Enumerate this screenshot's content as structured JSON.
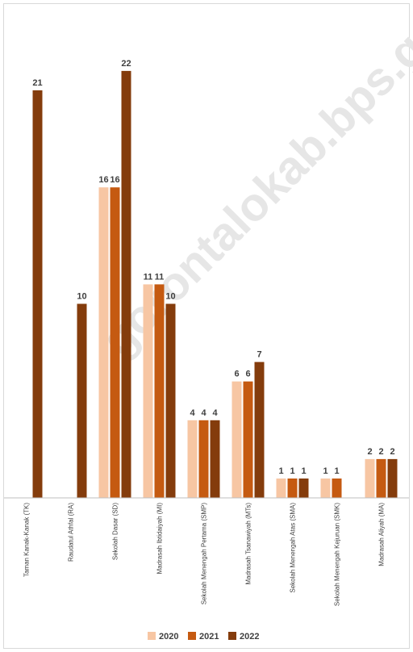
{
  "chart_data": {
    "type": "bar",
    "title": "",
    "xlabel": "",
    "ylabel": "",
    "ylim": [
      0,
      23
    ],
    "grid": false,
    "legend_position": "bottom",
    "categories": [
      "Taman Kanak-Kanak (TK)",
      "Raudatul Athfal (RA)",
      "Sekolah Dasar (SD)",
      "Madrasah Ibtidaiyah (MI)",
      "Sekolah Menengah Pertama (SMP)",
      "Madrasah Tsanawiyah (MTs)",
      "Sekolah Menengah Atas (SMA)",
      "Sekolah Menengah Kejuruan (SMK)",
      "Madrasah Aliyah (MA)"
    ],
    "series": [
      {
        "name": "2020",
        "color": "#f7c6a3",
        "values": [
          null,
          null,
          16,
          11,
          4,
          6,
          1,
          1,
          2
        ]
      },
      {
        "name": "2021",
        "color": "#c55a11",
        "values": [
          null,
          null,
          16,
          11,
          4,
          6,
          1,
          1,
          2
        ]
      },
      {
        "name": "2022",
        "color": "#843c0c",
        "values": [
          21,
          10,
          22,
          10,
          4,
          7,
          1,
          null,
          2
        ]
      }
    ]
  },
  "watermark": {
    "text": "gorontalokab.bps.go.id",
    "color": "#e8e8e8"
  }
}
